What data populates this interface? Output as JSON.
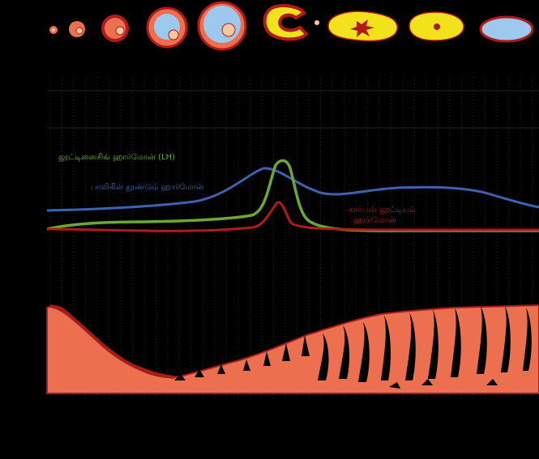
{
  "labels": {
    "lh": "லூட்டினைசிங் ஹார்மோன் (LH)",
    "fsh": "பாலிகிள் தூண்டும் ஹார்மோன்",
    "progesterone_line1": "கார்பஸ் லூட்டியம்",
    "progesterone_line2": "ஹார்மோன்"
  },
  "colors": {
    "lh": "#6aa832",
    "fsh": "#3c62b0",
    "progesterone": "#b21a1a",
    "endometrium": "#ec6f4f",
    "endometrium_edge": "#a81b1b",
    "follicle_fluid": "#9ec9ee",
    "corpus_luteum": "#f2e21c",
    "background": "#000000"
  },
  "stages": [
    "primordial-follicle",
    "primary-follicle",
    "secondary-follicle",
    "early-antral-follicle",
    "mature-follicle",
    "ovulation",
    "corpus-luteum",
    "mature-corpus-luteum",
    "corpus-albicans"
  ]
}
